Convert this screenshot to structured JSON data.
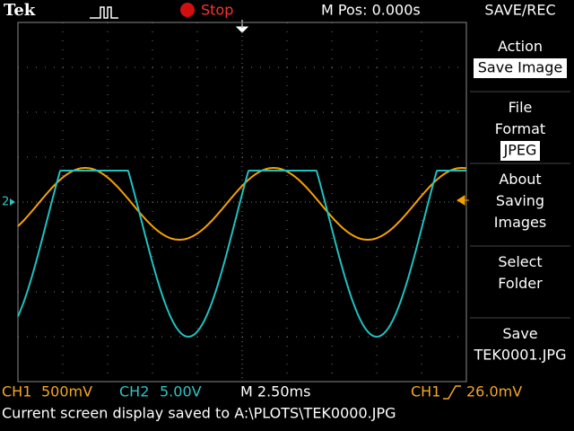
{
  "header": {
    "logo": "Tek",
    "state": "Stop",
    "position": "M Pos: 0.000s",
    "menu_title": "SAVE/REC"
  },
  "menu": [
    {
      "label": "Action",
      "value": "Save Image"
    },
    {
      "label": "File\nFormat",
      "value": "JPEG"
    },
    {
      "label": "About\nSaving\nImages"
    },
    {
      "label": "Select\nFolder"
    },
    {
      "label": "Save",
      "value": "TEK0001.JPG"
    }
  ],
  "footer": {
    "ch1_name": "CH1",
    "ch1_scale": "500mV",
    "ch2_name": "CH2",
    "ch2_scale": "5.00V",
    "time": "M 2.50ms",
    "trigger_source": "CH1",
    "trigger_level": "26.0mV"
  },
  "marker": "2",
  "message": "Current screen display saved to A:\\PLOTS\\TEK0000.JPG"
}
